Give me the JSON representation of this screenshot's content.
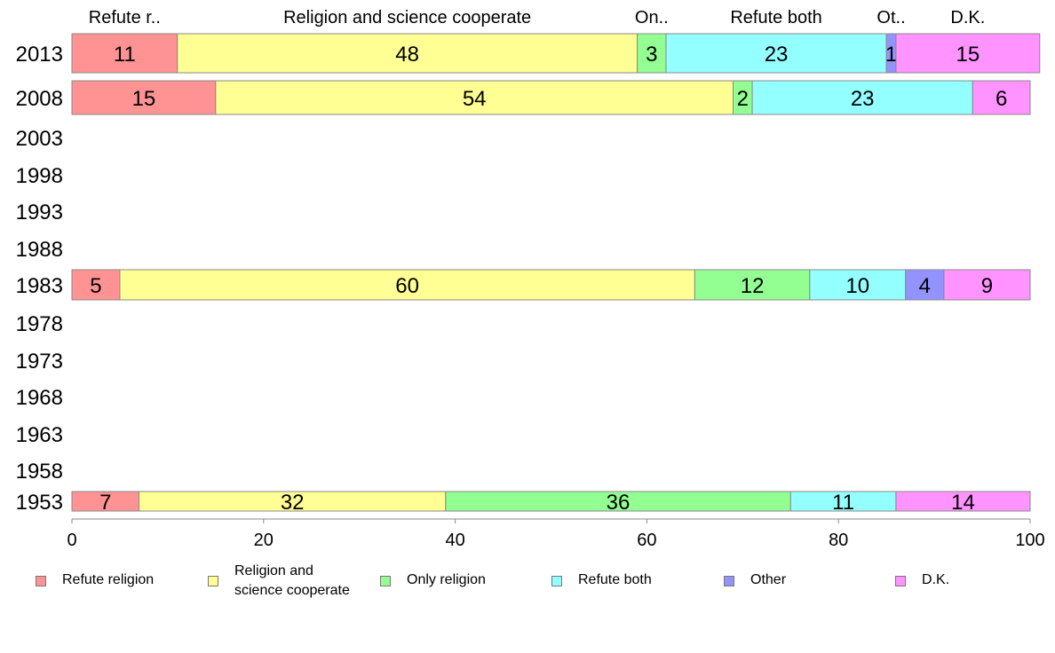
{
  "chart_data": {
    "type": "bar",
    "orientation": "horizontal",
    "stacked": true,
    "categories": [
      "2013",
      "2008",
      "2003",
      "1998",
      "1993",
      "1988",
      "1983",
      "1978",
      "1973",
      "1968",
      "1963",
      "1958",
      "1953"
    ],
    "series": [
      {
        "name": "Refute religion",
        "color": "#ff9393",
        "values": [
          11,
          15,
          null,
          null,
          null,
          null,
          5,
          null,
          null,
          null,
          null,
          null,
          7
        ]
      },
      {
        "name": "Religion and science cooperate",
        "color": "#ffff93",
        "values": [
          48,
          54,
          null,
          null,
          null,
          null,
          60,
          null,
          null,
          null,
          null,
          null,
          32
        ]
      },
      {
        "name": "Only religion",
        "color": "#93ff93",
        "values": [
          3,
          2,
          null,
          null,
          null,
          null,
          12,
          null,
          null,
          null,
          null,
          null,
          36
        ]
      },
      {
        "name": "Refute both",
        "color": "#93ffff",
        "values": [
          23,
          23,
          null,
          null,
          null,
          null,
          10,
          null,
          null,
          null,
          null,
          null,
          11
        ]
      },
      {
        "name": "Other",
        "color": "#9393ff",
        "values": [
          1,
          0,
          null,
          null,
          null,
          null,
          4,
          null,
          null,
          null,
          null,
          null,
          0
        ]
      },
      {
        "name": "D.K.",
        "color": "#ff93ff",
        "values": [
          15,
          6,
          null,
          null,
          null,
          null,
          9,
          null,
          null,
          null,
          null,
          null,
          14
        ]
      }
    ],
    "top_labels": [
      "Refute r..",
      "Religion and science cooperate",
      "On..",
      "Refute both",
      "Ot..",
      "D.K."
    ],
    "xlim": [
      0,
      100
    ],
    "xticks": [
      0,
      20,
      40,
      60,
      80,
      100
    ],
    "xlabel": "",
    "ylabel": "",
    "grid": false,
    "legend_position": "bottom"
  },
  "legend": [
    {
      "label": "Refute religion",
      "color": "#ff9393"
    },
    {
      "label": "Religion and\nscience cooperate",
      "color": "#ffff93"
    },
    {
      "label": "Only religion",
      "color": "#93ff93"
    },
    {
      "label": "Refute both",
      "color": "#93ffff"
    },
    {
      "label": "Other",
      "color": "#9393ff"
    },
    {
      "label": "D.K.",
      "color": "#ff93ff"
    }
  ]
}
